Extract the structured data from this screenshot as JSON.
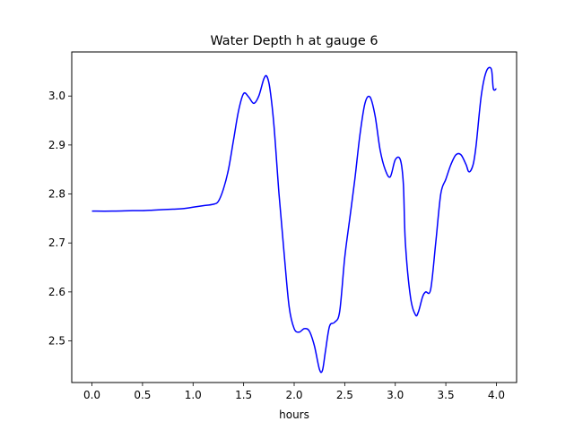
{
  "chart_data": {
    "type": "line",
    "title": "Water Depth h at gauge 6",
    "xlabel": "hours",
    "ylabel": "",
    "xlim": [
      -0.2,
      4.2
    ],
    "ylim": [
      2.415,
      3.09
    ],
    "xticks": [
      0.0,
      0.5,
      1.0,
      1.5,
      2.0,
      2.5,
      3.0,
      3.5,
      4.0
    ],
    "xtick_labels": [
      "0.0",
      "0.5",
      "1.0",
      "1.5",
      "2.0",
      "2.5",
      "3.0",
      "3.5",
      "4.0"
    ],
    "yticks": [
      2.5,
      2.6,
      2.7,
      2.8,
      2.9,
      3.0
    ],
    "ytick_labels": [
      "2.5",
      "2.6",
      "2.7",
      "2.8",
      "2.9",
      "3.0"
    ],
    "grid": false,
    "legend": "none",
    "series": [
      {
        "color": "#0000ff",
        "x": [
          0.0,
          0.2,
          0.4,
          0.5,
          0.6,
          0.7,
          0.8,
          0.9,
          1.0,
          1.1,
          1.2,
          1.25,
          1.3,
          1.35,
          1.4,
          1.45,
          1.5,
          1.55,
          1.6,
          1.65,
          1.7,
          1.73,
          1.76,
          1.8,
          1.85,
          1.9,
          1.95,
          2.0,
          2.05,
          2.1,
          2.15,
          2.2,
          2.25,
          2.28,
          2.31,
          2.35,
          2.4,
          2.45,
          2.5,
          2.55,
          2.6,
          2.65,
          2.7,
          2.75,
          2.8,
          2.85,
          2.9,
          2.95,
          3.0,
          3.05,
          3.08,
          3.1,
          3.15,
          3.2,
          3.23,
          3.27,
          3.3,
          3.35,
          3.4,
          3.45,
          3.5,
          3.55,
          3.6,
          3.65,
          3.7,
          3.73,
          3.77,
          3.8,
          3.85,
          3.9,
          3.95,
          3.97,
          4.0
        ],
        "y": [
          2.765,
          2.765,
          2.766,
          2.766,
          2.767,
          2.768,
          2.769,
          2.77,
          2.773,
          2.776,
          2.779,
          2.785,
          2.81,
          2.85,
          2.91,
          2.97,
          3.005,
          2.998,
          2.985,
          3.0,
          3.035,
          3.04,
          3.015,
          2.94,
          2.8,
          2.68,
          2.57,
          2.525,
          2.518,
          2.525,
          2.52,
          2.49,
          2.442,
          2.44,
          2.48,
          2.53,
          2.538,
          2.56,
          2.67,
          2.75,
          2.83,
          2.92,
          2.985,
          2.998,
          2.96,
          2.89,
          2.85,
          2.835,
          2.87,
          2.87,
          2.82,
          2.7,
          2.59,
          2.553,
          2.56,
          2.59,
          2.6,
          2.605,
          2.7,
          2.8,
          2.83,
          2.86,
          2.88,
          2.88,
          2.86,
          2.845,
          2.86,
          2.9,
          3.0,
          3.05,
          3.055,
          3.015,
          3.015
        ]
      }
    ]
  }
}
